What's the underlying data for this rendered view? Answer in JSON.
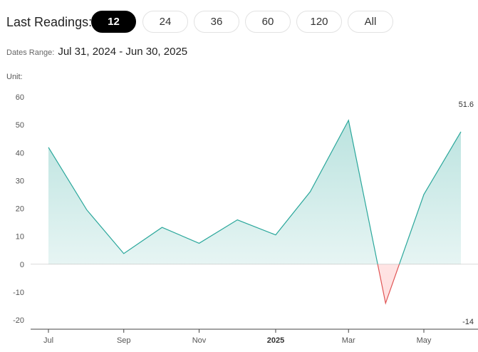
{
  "header": {
    "title": "Last Readings:",
    "ranges": [
      "12",
      "24",
      "36",
      "60",
      "120",
      "All"
    ],
    "active_range": "12",
    "dates_label": "Dates Range:",
    "dates_value": "Jul 31, 2024 - Jun 30, 2025",
    "unit_label": "Unit:"
  },
  "colors": {
    "line": "#2aa79b",
    "fill_positive": "#2aa79b",
    "fill_negative": "#ff6b6b",
    "negative_line": "#e05555"
  },
  "chart_data": {
    "type": "area",
    "x": [
      "2024-07-31",
      "2024-08-31",
      "2024-09-30",
      "2024-10-31",
      "2024-11-30",
      "2024-12-31",
      "2025-01-31",
      "2025-02-28",
      "2025-03-31",
      "2025-04-30",
      "2025-05-31",
      "2025-06-30"
    ],
    "values": [
      41.9,
      19.5,
      3.8,
      13.2,
      7.5,
      15.9,
      10.5,
      26.0,
      51.6,
      -14.0,
      25.0,
      47.5
    ],
    "x_tick_labels": [
      "Jul",
      "Sep",
      "Nov",
      "2025",
      "Mar",
      "May"
    ],
    "x_tick_dates": [
      "2024-07-31",
      "2024-09-30",
      "2024-11-30",
      "2025-01-31",
      "2025-03-31",
      "2025-05-31"
    ],
    "bold_ticks": [
      "2025"
    ],
    "y_ticks": [
      60,
      50,
      40,
      30,
      20,
      10,
      0,
      -10,
      -20
    ],
    "ylim": [
      -22,
      60
    ],
    "max_label": "51.6",
    "min_label": "-14",
    "grid": false
  }
}
